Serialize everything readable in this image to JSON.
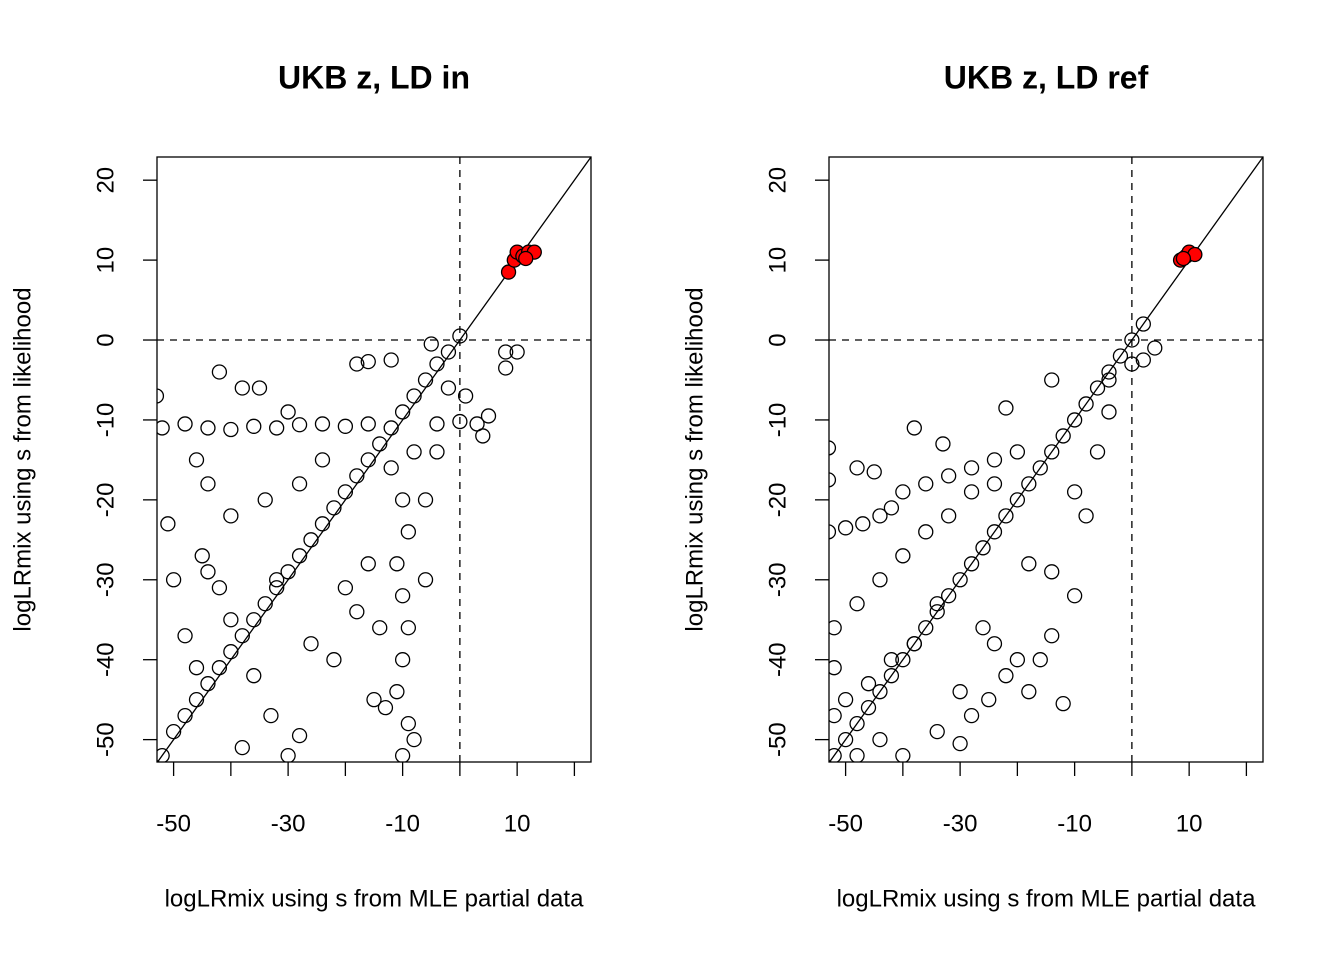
{
  "chart_data": [
    {
      "type": "scatter",
      "title": "UKB z, LD in",
      "xlabel": "logLRmix using s from MLE partial data",
      "ylabel": "logLRmix using s from likelihood",
      "xlim": [
        -52.9,
        22.9
      ],
      "ylim": [
        -52.8,
        22.9
      ],
      "xticks": [
        -50,
        -40,
        -30,
        -20,
        -10,
        0,
        10,
        20
      ],
      "yticks": [
        -50,
        -40,
        -30,
        -20,
        -10,
        0,
        10,
        20
      ],
      "hline": 0,
      "vline": 0,
      "identity_line": true,
      "series": [
        {
          "color": "#000000",
          "filled": false,
          "x": [
            -52,
            -50,
            -48,
            -46,
            -44,
            -42,
            -40,
            -38,
            -36,
            -34,
            -32,
            -30,
            -28,
            -26,
            -24,
            -22,
            -20,
            -18,
            -16,
            -14,
            -12,
            -10,
            -8,
            -6,
            -4,
            -2,
            0,
            -52,
            -48,
            -44,
            -40,
            -36,
            -32,
            -28,
            -24,
            -20,
            -16,
            -4,
            0,
            3,
            5,
            -10,
            -9,
            -11,
            -10,
            -9,
            -10,
            -11,
            -9,
            -10,
            -12,
            -8,
            -53,
            -42,
            -38,
            -35,
            -30,
            -18,
            -16,
            -12,
            -5,
            8,
            8,
            10,
            -51,
            -45,
            -44,
            -40,
            -36,
            -33,
            -28,
            -30,
            -20,
            -18,
            -22,
            -15,
            -13,
            -8,
            -50,
            -48,
            -46,
            -38,
            -42,
            -34,
            -28,
            -24,
            -44,
            -46,
            -40,
            -32,
            -26,
            -16,
            -6,
            -4,
            -2,
            1,
            4,
            -6,
            -14
          ],
          "values": [
            -52,
            -49,
            -47,
            -45,
            -43,
            -41,
            -39,
            -37,
            -35,
            -33,
            -31,
            -29,
            -27,
            -25,
            -23,
            -21,
            -19,
            -17,
            -15,
            -13,
            -11,
            -9,
            -7,
            -5,
            -3,
            -1.5,
            0.5,
            -11,
            -10.5,
            -11,
            -11.2,
            -10.8,
            -11,
            -10.6,
            -10.5,
            -10.8,
            -10.5,
            -10.5,
            -10.2,
            -10.5,
            -9.5,
            -52,
            -48,
            -44,
            -40,
            -36,
            -32,
            -28,
            -24,
            -20,
            -16,
            -14,
            -7,
            -4,
            -6,
            -6,
            -9,
            -3,
            -2.7,
            -2.5,
            -0.5,
            -1.5,
            -3.5,
            -1.5,
            -23,
            -27,
            -29,
            -35,
            -42,
            -47,
            -49.5,
            -52,
            -31,
            -34,
            -40,
            -45,
            -46,
            -50,
            -30,
            -37,
            -41,
            -51,
            -31,
            -20,
            -18,
            -15,
            -18,
            -15,
            -22,
            -30,
            -38,
            -28,
            -20,
            -14,
            -6,
            -7,
            -12,
            -30,
            -36
          ]
        },
        {
          "color": "#ff0000",
          "filled": true,
          "x": [
            8.5,
            9.5,
            10,
            11,
            12,
            13,
            11.5
          ],
          "values": [
            8.5,
            10,
            11,
            10.5,
            11,
            11,
            10.2
          ]
        }
      ]
    },
    {
      "type": "scatter",
      "title": "UKB z, LD ref",
      "xlabel": "logLRmix using s from MLE partial data",
      "ylabel": "logLRmix using s from likelihood",
      "xlim": [
        -52.9,
        22.9
      ],
      "ylim": [
        -52.8,
        22.9
      ],
      "xticks": [
        -50,
        -40,
        -30,
        -20,
        -10,
        0,
        10,
        20
      ],
      "yticks": [
        -50,
        -40,
        -30,
        -20,
        -10,
        0,
        10,
        20
      ],
      "hline": 0,
      "vline": 0,
      "identity_line": true,
      "series": [
        {
          "color": "#000000",
          "filled": false,
          "x": [
            -52,
            -50,
            -48,
            -46,
            -44,
            -42,
            -40,
            -38,
            -36,
            -34,
            -32,
            -30,
            -28,
            -26,
            -24,
            -22,
            -20,
            -18,
            -16,
            -14,
            -12,
            -10,
            -8,
            -6,
            -4,
            -2,
            0,
            2,
            -53,
            -50,
            -47,
            -44,
            -42,
            -40,
            -36,
            -32,
            -28,
            -24,
            -20,
            -52,
            -48,
            -44,
            -40,
            -36,
            -32,
            -28,
            -24,
            -50,
            -46,
            -42,
            -38,
            -34,
            -53,
            -53,
            -48,
            -45,
            -38,
            -33,
            -22,
            -14,
            -4,
            4,
            2,
            -30,
            -28,
            -25,
            -22,
            -20,
            -24,
            -16,
            -14,
            -10,
            -14,
            -18,
            -26,
            -34,
            -30,
            -40,
            -44,
            -48,
            -52,
            -52,
            -18,
            -12,
            -8,
            -10,
            -6,
            -4,
            0
          ],
          "values": [
            -52,
            -50,
            -48,
            -46,
            -44,
            -42,
            -40,
            -38,
            -36,
            -34,
            -32,
            -30,
            -28,
            -26,
            -24,
            -22,
            -20,
            -18,
            -16,
            -14,
            -12,
            -10,
            -8,
            -6,
            -4,
            -2,
            0,
            2,
            -24,
            -23.5,
            -23,
            -22,
            -21,
            -19,
            -18,
            -17,
            -16,
            -15,
            -14,
            -36,
            -33,
            -30,
            -27,
            -24,
            -22,
            -19,
            -18,
            -45,
            -43,
            -40,
            -38,
            -33,
            -13.5,
            -17.5,
            -16,
            -16.5,
            -11,
            -13,
            -8.5,
            -5,
            -5,
            -1,
            -2.5,
            -44,
            -47,
            -45,
            -42,
            -40,
            -38,
            -40,
            -37,
            -32,
            -29,
            -28,
            -36,
            -49,
            -50.5,
            -52,
            -50,
            -52,
            -41,
            -47,
            -44,
            -45.5,
            -22,
            -19,
            -14,
            -9,
            -3
          ]
        },
        {
          "color": "#ff0000",
          "filled": true,
          "x": [
            8.5,
            9.5,
            10,
            11,
            9
          ],
          "values": [
            10,
            10.5,
            11,
            10.7,
            10.2
          ]
        }
      ]
    }
  ]
}
